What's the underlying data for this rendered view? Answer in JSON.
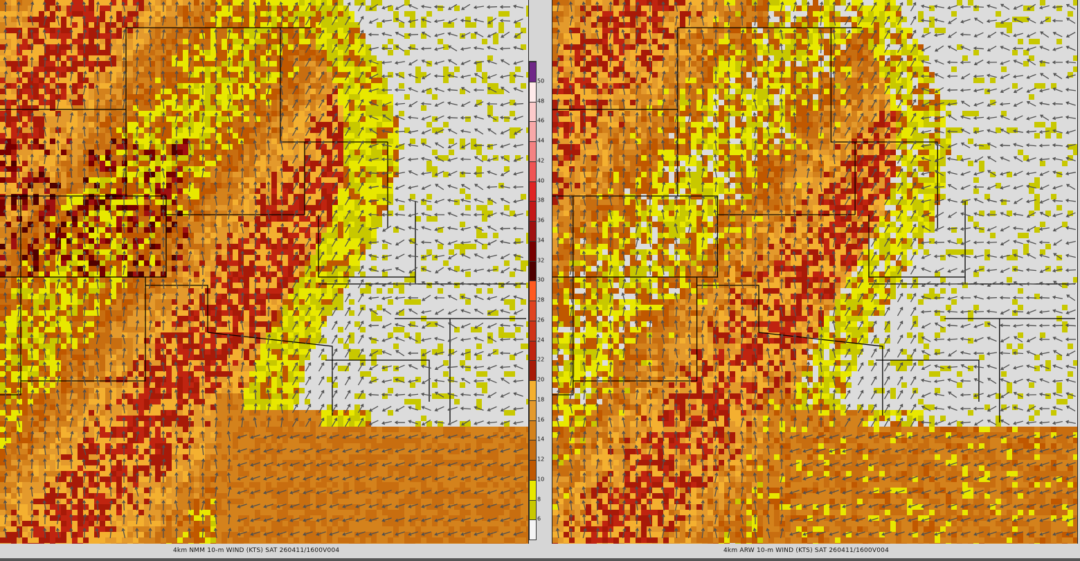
{
  "panels": [
    {
      "model": "NMM",
      "caption": "4km NMM 10-m WIND (KTS) SAT 260411/1600V004"
    },
    {
      "model": "ARW",
      "caption": "4km ARW 10-m WIND (KTS) SAT 260411/1600V004"
    }
  ],
  "colorbar": {
    "units": "KTS",
    "labels": [
      "6",
      "8",
      "10",
      "12",
      "14",
      "16",
      "18",
      "20",
      "22",
      "24",
      "26",
      "28",
      "30",
      "32",
      "34",
      "36",
      "38",
      "40",
      "42",
      "44",
      "46",
      "48",
      "50"
    ],
    "colors": [
      "#f4f4f4",
      "#c8c800",
      "#e8e800",
      "#c05800",
      "#c86e10",
      "#d4821c",
      "#e49a2c",
      "#f4b030",
      "#a81a08",
      "#c02410",
      "#d03418",
      "#e04420",
      "#ff5a20",
      "#500000",
      "#780000",
      "#a01010",
      "#c41818",
      "#e02424",
      "#f05454",
      "#f48282",
      "#f8a8a8",
      "#fccaca",
      "#ffeaea",
      "#702888"
    ]
  },
  "background_color": "#dcdcdc",
  "vector_color": "#505050",
  "boundary_color": "#000000"
}
